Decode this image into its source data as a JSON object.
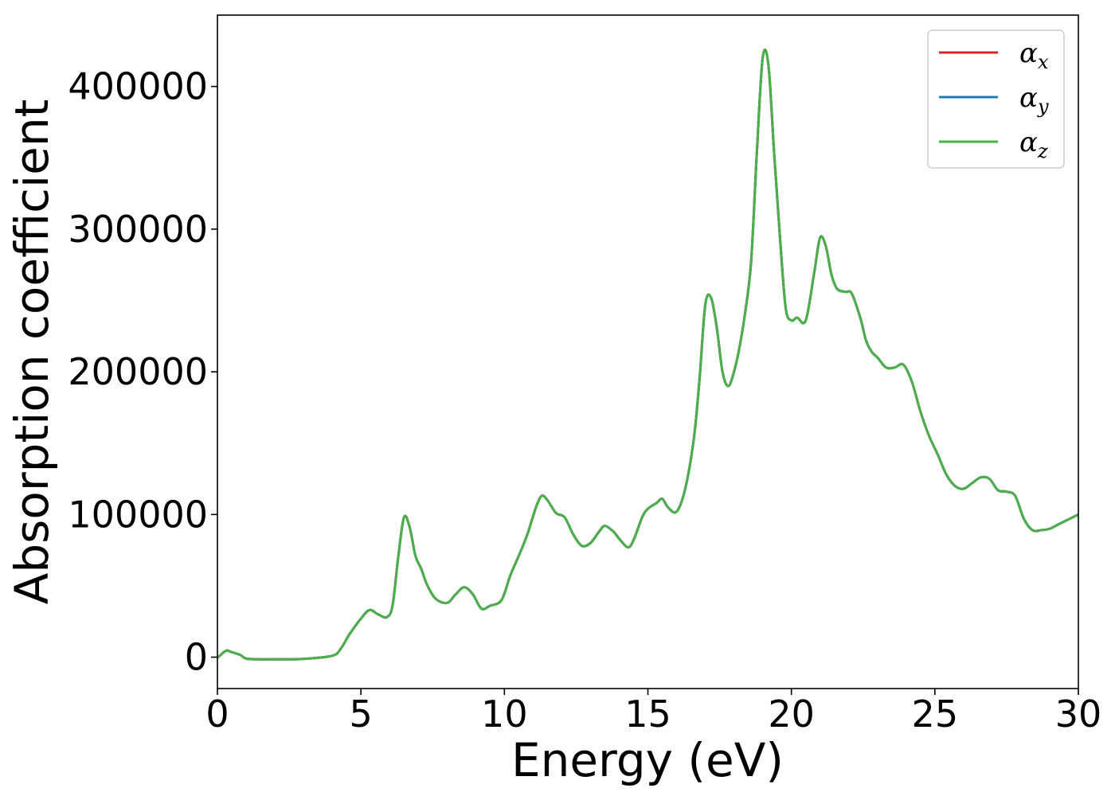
{
  "chart_data": {
    "type": "line",
    "title": "",
    "xlabel": "Energy (eV)",
    "ylabel": "Absorption coefficient",
    "xlim": [
      0,
      30
    ],
    "ylim": [
      -22000,
      450000
    ],
    "xticks": [
      0,
      5,
      10,
      15,
      20,
      25,
      30
    ],
    "xtick_labels": [
      "0",
      "5",
      "10",
      "15",
      "20",
      "25",
      "30"
    ],
    "yticks": [
      0,
      100000,
      200000,
      300000,
      400000
    ],
    "ytick_labels": [
      "0",
      "100000",
      "200000",
      "300000",
      "400000"
    ],
    "grid": false,
    "legend_position": "top-right",
    "series": [
      {
        "name": "αx",
        "legend_base": "α",
        "legend_sub": "x",
        "color": "#d62728",
        "x": [
          0,
          0.3,
          0.5,
          0.8,
          1.0,
          1.5,
          2.0,
          3.0,
          4.0,
          4.3,
          4.6,
          5.0,
          5.3,
          5.6,
          5.9,
          6.1,
          6.3,
          6.5,
          6.7,
          6.9,
          7.1,
          7.3,
          7.6,
          8.0,
          8.3,
          8.6,
          8.9,
          9.2,
          9.5,
          9.9,
          10.2,
          10.5,
          10.8,
          11.1,
          11.3,
          11.5,
          11.8,
          12.1,
          12.4,
          12.7,
          13.0,
          13.3,
          13.5,
          13.8,
          14.0,
          14.3,
          14.5,
          14.8,
          15.0,
          15.3,
          15.5,
          15.7,
          16.0,
          16.3,
          16.6,
          16.8,
          17.0,
          17.2,
          17.4,
          17.6,
          17.8,
          18.0,
          18.2,
          18.4,
          18.6,
          18.8,
          19.0,
          19.2,
          19.4,
          19.6,
          19.8,
          20.0,
          20.2,
          20.5,
          20.8,
          21.0,
          21.2,
          21.4,
          21.6,
          21.9,
          22.1,
          22.4,
          22.6,
          22.8,
          23.0,
          23.3,
          23.6,
          23.9,
          24.2,
          24.5,
          24.8,
          25.1,
          25.4,
          25.7,
          26.0,
          26.3,
          26.6,
          26.9,
          27.2,
          27.5,
          27.8,
          28.1,
          28.4,
          28.7,
          29.0,
          29.3,
          29.6,
          30.0
        ],
        "y": [
          -500,
          4500,
          3500,
          1500,
          -1000,
          -1500,
          -1500,
          -1200,
          1000,
          6000,
          16000,
          27000,
          33000,
          30000,
          28000,
          36000,
          70000,
          98000,
          91000,
          71000,
          62000,
          51000,
          41000,
          38000,
          44000,
          49000,
          44000,
          34000,
          36000,
          40000,
          57000,
          71000,
          86000,
          105000,
          113000,
          110000,
          101000,
          98000,
          86000,
          78000,
          80000,
          88000,
          92000,
          88000,
          83000,
          77000,
          82000,
          98000,
          104000,
          108000,
          111000,
          105000,
          102000,
          118000,
          153000,
          195000,
          247000,
          252000,
          231000,
          200000,
          190000,
          200000,
          218000,
          243000,
          278000,
          355000,
          420000,
          415000,
          353000,
          295000,
          245000,
          236000,
          238000,
          236000,
          270000,
          294000,
          288000,
          268000,
          258000,
          256000,
          255000,
          238000,
          222000,
          214000,
          210000,
          203000,
          203000,
          205000,
          193000,
          172000,
          155000,
          142000,
          128000,
          120000,
          118000,
          122000,
          126000,
          125000,
          117000,
          116000,
          113000,
          97000,
          89000,
          89000,
          90000,
          93000,
          96000,
          100000
        ]
      },
      {
        "name": "αy",
        "legend_base": "α",
        "legend_sub": "y",
        "color": "#1f77b4",
        "x": [
          0,
          0.3,
          0.5,
          0.8,
          1.0,
          1.5,
          2.0,
          3.0,
          4.0,
          4.3,
          4.6,
          5.0,
          5.3,
          5.6,
          5.9,
          6.1,
          6.3,
          6.5,
          6.7,
          6.9,
          7.1,
          7.3,
          7.6,
          8.0,
          8.3,
          8.6,
          8.9,
          9.2,
          9.5,
          9.9,
          10.2,
          10.5,
          10.8,
          11.1,
          11.3,
          11.5,
          11.8,
          12.1,
          12.4,
          12.7,
          13.0,
          13.3,
          13.5,
          13.8,
          14.0,
          14.3,
          14.5,
          14.8,
          15.0,
          15.3,
          15.5,
          15.7,
          16.0,
          16.3,
          16.6,
          16.8,
          17.0,
          17.2,
          17.4,
          17.6,
          17.8,
          18.0,
          18.2,
          18.4,
          18.6,
          18.8,
          19.0,
          19.2,
          19.4,
          19.6,
          19.8,
          20.0,
          20.2,
          20.5,
          20.8,
          21.0,
          21.2,
          21.4,
          21.6,
          21.9,
          22.1,
          22.4,
          22.6,
          22.8,
          23.0,
          23.3,
          23.6,
          23.9,
          24.2,
          24.5,
          24.8,
          25.1,
          25.4,
          25.7,
          26.0,
          26.3,
          26.6,
          26.9,
          27.2,
          27.5,
          27.8,
          28.1,
          28.4,
          28.7,
          29.0,
          29.3,
          29.6,
          30.0
        ],
        "y": [
          -500,
          4500,
          3500,
          1500,
          -1000,
          -1500,
          -1500,
          -1200,
          1000,
          6000,
          16000,
          27000,
          33000,
          30000,
          28000,
          36000,
          70000,
          98000,
          91000,
          71000,
          62000,
          51000,
          41000,
          38000,
          44000,
          49000,
          44000,
          34000,
          36000,
          40000,
          57000,
          71000,
          86000,
          105000,
          113000,
          110000,
          101000,
          98000,
          86000,
          78000,
          80000,
          88000,
          92000,
          88000,
          83000,
          77000,
          82000,
          98000,
          104000,
          108000,
          111000,
          105000,
          102000,
          118000,
          153000,
          195000,
          247000,
          252000,
          231000,
          200000,
          190000,
          200000,
          218000,
          243000,
          278000,
          355000,
          420000,
          415000,
          353000,
          295000,
          245000,
          236000,
          238000,
          236000,
          270000,
          294000,
          288000,
          268000,
          258000,
          256000,
          255000,
          238000,
          222000,
          214000,
          210000,
          203000,
          203000,
          205000,
          193000,
          172000,
          155000,
          142000,
          128000,
          120000,
          118000,
          122000,
          126000,
          125000,
          117000,
          116000,
          113000,
          97000,
          89000,
          89000,
          90000,
          93000,
          96000,
          100000
        ]
      },
      {
        "name": "αz",
        "legend_base": "α",
        "legend_sub": "z",
        "color": "#4daf4a",
        "x": [
          0,
          0.3,
          0.5,
          0.8,
          1.0,
          1.5,
          2.0,
          3.0,
          4.0,
          4.3,
          4.6,
          5.0,
          5.3,
          5.6,
          5.9,
          6.1,
          6.3,
          6.5,
          6.7,
          6.9,
          7.1,
          7.3,
          7.6,
          8.0,
          8.3,
          8.6,
          8.9,
          9.2,
          9.5,
          9.9,
          10.2,
          10.5,
          10.8,
          11.1,
          11.3,
          11.5,
          11.8,
          12.1,
          12.4,
          12.7,
          13.0,
          13.3,
          13.5,
          13.8,
          14.0,
          14.3,
          14.5,
          14.8,
          15.0,
          15.3,
          15.5,
          15.7,
          16.0,
          16.3,
          16.6,
          16.8,
          17.0,
          17.2,
          17.4,
          17.6,
          17.8,
          18.0,
          18.2,
          18.4,
          18.6,
          18.8,
          19.0,
          19.2,
          19.4,
          19.6,
          19.8,
          20.0,
          20.2,
          20.5,
          20.8,
          21.0,
          21.2,
          21.4,
          21.6,
          21.9,
          22.1,
          22.4,
          22.6,
          22.8,
          23.0,
          23.3,
          23.6,
          23.9,
          24.2,
          24.5,
          24.8,
          25.1,
          25.4,
          25.7,
          26.0,
          26.3,
          26.6,
          26.9,
          27.2,
          27.5,
          27.8,
          28.1,
          28.4,
          28.7,
          29.0,
          29.3,
          29.6,
          30.0
        ],
        "y": [
          -500,
          4500,
          3500,
          1500,
          -1000,
          -1500,
          -1500,
          -1200,
          1000,
          6000,
          16000,
          27000,
          33000,
          30000,
          28000,
          36000,
          70000,
          98000,
          91000,
          71000,
          62000,
          51000,
          41000,
          38000,
          44000,
          49000,
          44000,
          34000,
          36000,
          40000,
          57000,
          71000,
          86000,
          105000,
          113000,
          110000,
          101000,
          98000,
          86000,
          78000,
          80000,
          88000,
          92000,
          88000,
          83000,
          77000,
          82000,
          98000,
          104000,
          108000,
          111000,
          105000,
          102000,
          118000,
          153000,
          195000,
          247000,
          252000,
          231000,
          200000,
          190000,
          200000,
          218000,
          243000,
          278000,
          355000,
          420000,
          415000,
          353000,
          295000,
          245000,
          236000,
          238000,
          236000,
          270000,
          294000,
          288000,
          268000,
          258000,
          256000,
          255000,
          238000,
          222000,
          214000,
          210000,
          203000,
          203000,
          205000,
          193000,
          172000,
          155000,
          142000,
          128000,
          120000,
          118000,
          122000,
          126000,
          125000,
          117000,
          116000,
          113000,
          97000,
          89000,
          89000,
          90000,
          93000,
          96000,
          100000
        ]
      }
    ]
  }
}
